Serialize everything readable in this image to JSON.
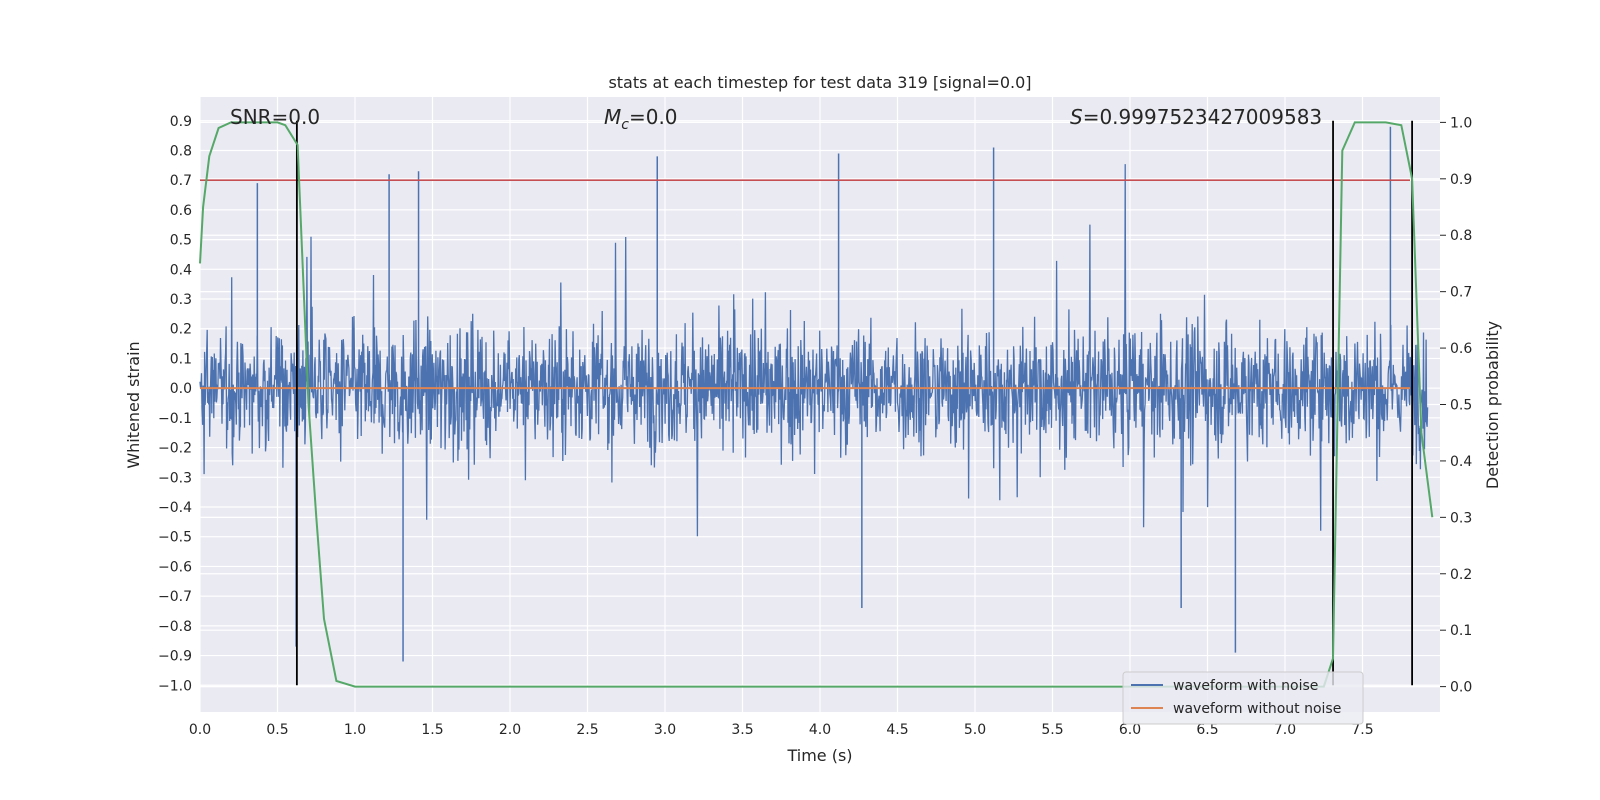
{
  "chart_data": {
    "type": "line",
    "title": "stats at each timestep for test data 319 [signal=0.0]",
    "xlabel": "Time (s)",
    "ylabel": "Whitened strain",
    "y2label": "Detection probability",
    "xlim": [
      0.0,
      8.0
    ],
    "ylim": [
      -1.09,
      0.98
    ],
    "y2lim": [
      -0.045,
      1.045
    ],
    "grid": true,
    "legend_position": "lower-right",
    "xticks": [
      "0.0",
      "0.5",
      "1.0",
      "1.5",
      "2.0",
      "2.5",
      "3.0",
      "3.5",
      "4.0",
      "4.5",
      "5.0",
      "5.5",
      "6.0",
      "6.5",
      "7.0",
      "7.5"
    ],
    "yticks": [
      "−1.0",
      "−0.9",
      "−0.8",
      "−0.7",
      "−0.6",
      "−0.5",
      "−0.4",
      "−0.3",
      "−0.2",
      "−0.1",
      "0.0",
      "0.1",
      "0.2",
      "0.3",
      "0.4",
      "0.5",
      "0.6",
      "0.7",
      "0.8",
      "0.9"
    ],
    "y2ticks": [
      "0.0",
      "0.1",
      "0.2",
      "0.3",
      "0.4",
      "0.5",
      "0.6",
      "0.7",
      "0.8",
      "0.9",
      "1.0"
    ],
    "annotations": {
      "snr": "SNR=0.0",
      "mc_symbol": "M",
      "mc_sub": "c",
      "mc_value": "=0.0",
      "s_symbol": "S",
      "s_value": "=0.9997523427009583"
    },
    "threshold_y": 0.7,
    "vertical_lines_x": [
      0.625,
      7.31,
      7.82
    ],
    "series": [
      {
        "name": "waveform with noise",
        "color": "#4c72b0",
        "description_values": "random noise, core ±0.3, peaks up to ±0.9",
        "peaks": [
          {
            "x": 0.37,
            "y": 0.69
          },
          {
            "x": 0.62,
            "y": -0.87
          },
          {
            "x": 1.22,
            "y": 0.72
          },
          {
            "x": 1.31,
            "y": -0.92
          },
          {
            "x": 1.41,
            "y": 0.73
          },
          {
            "x": 2.95,
            "y": 0.78
          },
          {
            "x": 4.12,
            "y": 0.79
          },
          {
            "x": 4.27,
            "y": -0.74
          },
          {
            "x": 5.12,
            "y": 0.81
          },
          {
            "x": 6.33,
            "y": -0.74
          },
          {
            "x": 6.68,
            "y": -0.89
          },
          {
            "x": 7.68,
            "y": 0.88
          }
        ]
      },
      {
        "name": "waveform without noise",
        "color": "#dd8452",
        "values_constant": 0.0
      },
      {
        "name": "",
        "color": "#55a868",
        "axis": "right",
        "x": [
          0.0,
          0.02,
          0.06,
          0.12,
          0.2,
          0.3,
          0.4,
          0.5,
          0.55,
          0.63,
          0.7,
          0.75,
          0.8,
          0.88,
          1.0,
          3.0,
          5.0,
          7.0,
          7.25,
          7.31,
          7.37,
          7.45,
          7.55,
          7.65,
          7.75,
          7.82,
          7.88,
          7.95
        ],
        "y": [
          0.75,
          0.85,
          0.94,
          0.99,
          1.0,
          1.0,
          1.0,
          1.0,
          0.995,
          0.96,
          0.5,
          0.3,
          0.12,
          0.01,
          0.0,
          0.0,
          0.0,
          0.0,
          0.0,
          0.05,
          0.95,
          1.0,
          1.0,
          1.0,
          0.995,
          0.9,
          0.45,
          0.3
        ]
      }
    ],
    "legend": [
      "waveform with noise",
      "waveform without noise"
    ]
  }
}
